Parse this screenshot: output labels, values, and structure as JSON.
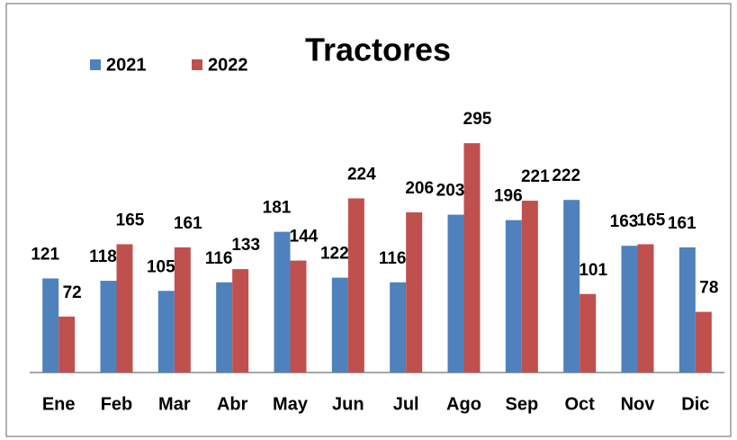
{
  "chart_data": {
    "type": "bar",
    "title": "Tractores",
    "categories": [
      "Ene",
      "Feb",
      "Mar",
      "Abr",
      "May",
      "Jun",
      "Jul",
      "Ago",
      "Sep",
      "Oct",
      "Nov",
      "Dic"
    ],
    "series": [
      {
        "name": "2021",
        "color": "#4f81bd",
        "values": [
          121,
          118,
          105,
          116,
          181,
          122,
          116,
          203,
          196,
          222,
          163,
          161
        ]
      },
      {
        "name": "2022",
        "color": "#c0504d",
        "values": [
          72,
          165,
          161,
          133,
          144,
          224,
          206,
          295,
          221,
          101,
          165,
          78
        ]
      }
    ],
    "ylim": [
      0,
      350
    ],
    "legend": "top-left"
  }
}
